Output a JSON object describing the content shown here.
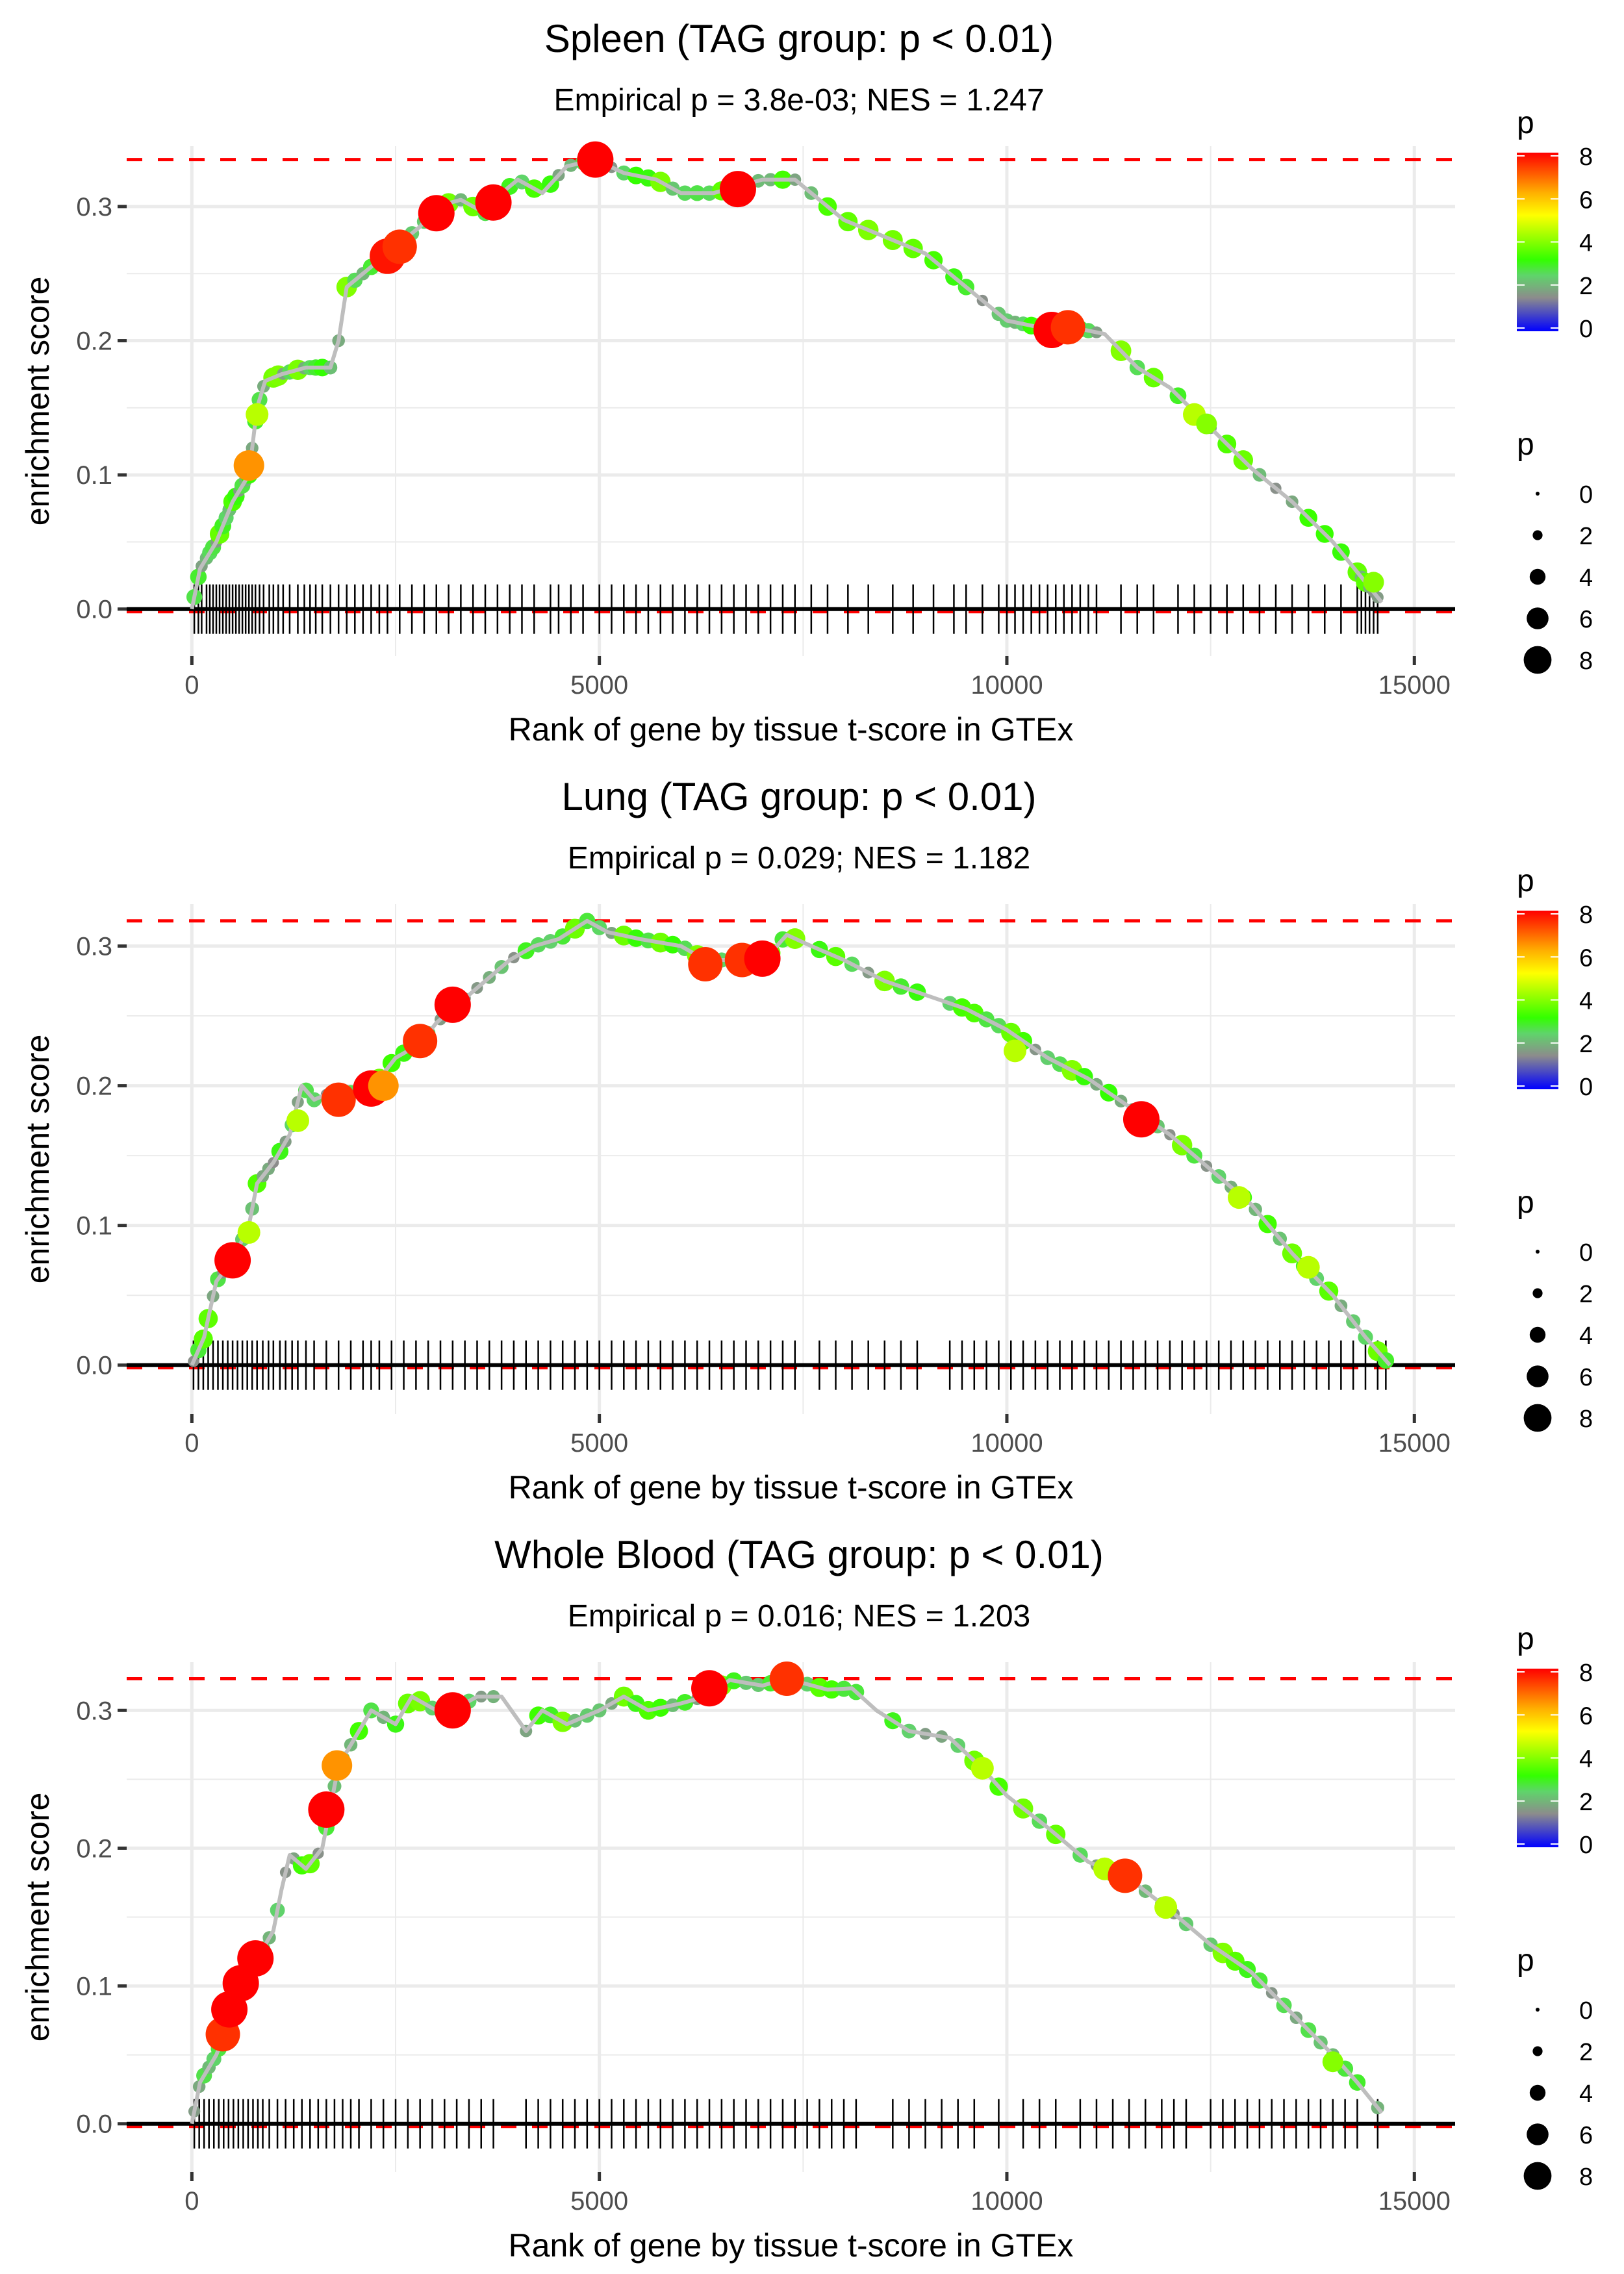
{
  "chart_data": [
    {
      "type": "line",
      "title": "Spleen (TAG group: p < 0.01)",
      "subtitle": "Empirical p = 3.8e-03; NES = 1.247",
      "xlabel": "Rank of gene by tissue t-score in GTEx",
      "ylabel": "enrichment score",
      "xlim": [
        -800,
        15500
      ],
      "ylim": [
        -0.035,
        0.345
      ],
      "x_ticks": [
        0,
        5000,
        10000,
        15000
      ],
      "x_tick_labels": [
        "0",
        "5000",
        "10000",
        "15000"
      ],
      "y_ticks": [
        0.0,
        0.1,
        0.2,
        0.3
      ],
      "y_tick_labels": [
        "0.0",
        "0.1",
        "0.2",
        "0.3"
      ],
      "max_es_line": 0.335,
      "grid": true,
      "curve": [
        [
          0,
          0.0
        ],
        [
          100,
          0.03
        ],
        [
          300,
          0.05
        ],
        [
          500,
          0.08
        ],
        [
          700,
          0.1
        ],
        [
          800,
          0.15
        ],
        [
          900,
          0.17
        ],
        [
          1100,
          0.175
        ],
        [
          1400,
          0.18
        ],
        [
          1700,
          0.18
        ],
        [
          1800,
          0.2
        ],
        [
          1900,
          0.24
        ],
        [
          2100,
          0.25
        ],
        [
          2300,
          0.26
        ],
        [
          2500,
          0.27
        ],
        [
          2800,
          0.285
        ],
        [
          3000,
          0.3
        ],
        [
          3300,
          0.305
        ],
        [
          3600,
          0.295
        ],
        [
          3800,
          0.31
        ],
        [
          4000,
          0.32
        ],
        [
          4300,
          0.31
        ],
        [
          4600,
          0.33
        ],
        [
          4950,
          0.335
        ],
        [
          5300,
          0.325
        ],
        [
          5700,
          0.32
        ],
        [
          6000,
          0.31
        ],
        [
          6400,
          0.31
        ],
        [
          6700,
          0.315
        ],
        [
          7000,
          0.32
        ],
        [
          7400,
          0.32
        ],
        [
          8000,
          0.29
        ],
        [
          8600,
          0.275
        ],
        [
          9000,
          0.265
        ],
        [
          9500,
          0.24
        ],
        [
          10000,
          0.215
        ],
        [
          10400,
          0.21
        ],
        [
          10800,
          0.21
        ],
        [
          11200,
          0.205
        ],
        [
          11600,
          0.18
        ],
        [
          12000,
          0.165
        ],
        [
          12500,
          0.135
        ],
        [
          13000,
          0.105
        ],
        [
          13500,
          0.08
        ],
        [
          14000,
          0.05
        ],
        [
          14400,
          0.02
        ],
        [
          14600,
          0.005
        ]
      ],
      "highlight_points": [
        {
          "rank": 700,
          "es": 0.107,
          "p": 6.5
        },
        {
          "rank": 800,
          "es": 0.145,
          "p": 4.5
        },
        {
          "rank": 2400,
          "es": 0.263,
          "p": 7.8
        },
        {
          "rank": 2550,
          "es": 0.27,
          "p": 7.5
        },
        {
          "rank": 3000,
          "es": 0.295,
          "p": 8
        },
        {
          "rank": 3700,
          "es": 0.303,
          "p": 8
        },
        {
          "rank": 4950,
          "es": 0.335,
          "p": 8
        },
        {
          "rank": 6700,
          "es": 0.313,
          "p": 8
        },
        {
          "rank": 10550,
          "es": 0.208,
          "p": 8
        },
        {
          "rank": 10750,
          "es": 0.21,
          "p": 7.5
        },
        {
          "rank": 12300,
          "es": 0.145,
          "p": 4.5
        },
        {
          "rank": 12450,
          "es": 0.138,
          "p": 4
        },
        {
          "rank": 14500,
          "es": 0.02,
          "p": 4
        }
      ],
      "rug_ranks": [
        30,
        80,
        120,
        180,
        220,
        260,
        300,
        340,
        380,
        420,
        460,
        500,
        540,
        580,
        620,
        660,
        700,
        740,
        780,
        830,
        880,
        950,
        1000,
        1060,
        1120,
        1200,
        1300,
        1380,
        1450,
        1520,
        1600,
        1700,
        1800,
        1900,
        2000,
        2100,
        2200,
        2300,
        2400,
        2550,
        2700,
        2850,
        3000,
        3150,
        3300,
        3450,
        3600,
        3750,
        3900,
        4050,
        4200,
        4400,
        4500,
        4650,
        4800,
        5000,
        5150,
        5300,
        5450,
        5600,
        5750,
        5900,
        6050,
        6200,
        6350,
        6500,
        6650,
        6800,
        6950,
        7100,
        7250,
        7400,
        7600,
        7800,
        8050,
        8300,
        8600,
        8850,
        9100,
        9350,
        9500,
        9700,
        9900,
        10000,
        10100,
        10200,
        10300,
        10400,
        10500,
        10600,
        10700,
        10800,
        10900,
        11000,
        11100,
        11400,
        11600,
        11800,
        12100,
        12300,
        12500,
        12700,
        12900,
        13100,
        13300,
        13500,
        13700,
        13900,
        14100,
        14300,
        14350,
        14400,
        14450,
        14500,
        14550
      ]
    },
    {
      "type": "line",
      "title": "Lung (TAG group: p < 0.01)",
      "subtitle": "Empirical p = 0.029; NES = 1.182",
      "xlabel": "Rank of gene by tissue t-score in GTEx",
      "ylabel": "enrichment score",
      "xlim": [
        -800,
        15500
      ],
      "ylim": [
        -0.035,
        0.33
      ],
      "x_ticks": [
        0,
        5000,
        10000,
        15000
      ],
      "x_tick_labels": [
        "0",
        "5000",
        "10000",
        "15000"
      ],
      "y_ticks": [
        0.0,
        0.1,
        0.2,
        0.3
      ],
      "y_tick_labels": [
        "0.0",
        "0.1",
        "0.2",
        "0.3"
      ],
      "max_es_line": 0.318,
      "grid": true,
      "curve": [
        [
          0,
          0.0
        ],
        [
          150,
          0.02
        ],
        [
          300,
          0.06
        ],
        [
          500,
          0.075
        ],
        [
          700,
          0.1
        ],
        [
          800,
          0.13
        ],
        [
          1000,
          0.145
        ],
        [
          1200,
          0.165
        ],
        [
          1350,
          0.2
        ],
        [
          1500,
          0.19
        ],
        [
          1700,
          0.195
        ],
        [
          2000,
          0.195
        ],
        [
          2300,
          0.205
        ],
        [
          2500,
          0.22
        ],
        [
          2800,
          0.23
        ],
        [
          3000,
          0.245
        ],
        [
          3300,
          0.26
        ],
        [
          3600,
          0.275
        ],
        [
          3900,
          0.29
        ],
        [
          4200,
          0.3
        ],
        [
          4500,
          0.305
        ],
        [
          4850,
          0.318
        ],
        [
          5100,
          0.31
        ],
        [
          5500,
          0.305
        ],
        [
          6000,
          0.3
        ],
        [
          6300,
          0.29
        ],
        [
          6800,
          0.29
        ],
        [
          7100,
          0.295
        ],
        [
          7300,
          0.308
        ],
        [
          7600,
          0.3
        ],
        [
          8000,
          0.29
        ],
        [
          8500,
          0.275
        ],
        [
          9000,
          0.265
        ],
        [
          9500,
          0.255
        ],
        [
          10000,
          0.24
        ],
        [
          10500,
          0.22
        ],
        [
          11000,
          0.205
        ],
        [
          11500,
          0.185
        ],
        [
          12000,
          0.165
        ],
        [
          12500,
          0.14
        ],
        [
          13000,
          0.115
        ],
        [
          13500,
          0.08
        ],
        [
          14000,
          0.05
        ],
        [
          14400,
          0.02
        ],
        [
          14700,
          0.0
        ]
      ],
      "highlight_points": [
        {
          "rank": 500,
          "es": 0.075,
          "p": 8
        },
        {
          "rank": 700,
          "es": 0.095,
          "p": 4.5
        },
        {
          "rank": 1300,
          "es": 0.175,
          "p": 4.5
        },
        {
          "rank": 1800,
          "es": 0.19,
          "p": 7.5
        },
        {
          "rank": 2200,
          "es": 0.198,
          "p": 8
        },
        {
          "rank": 2350,
          "es": 0.2,
          "p": 6.5
        },
        {
          "rank": 2800,
          "es": 0.232,
          "p": 7.5
        },
        {
          "rank": 3200,
          "es": 0.258,
          "p": 8
        },
        {
          "rank": 6300,
          "es": 0.287,
          "p": 7.5
        },
        {
          "rank": 6750,
          "es": 0.29,
          "p": 7.5
        },
        {
          "rank": 7000,
          "es": 0.291,
          "p": 8
        },
        {
          "rank": 10100,
          "es": 0.225,
          "p": 4.5
        },
        {
          "rank": 11650,
          "es": 0.176,
          "p": 8
        },
        {
          "rank": 12850,
          "es": 0.12,
          "p": 4.5
        },
        {
          "rank": 13700,
          "es": 0.07,
          "p": 4.5
        }
      ],
      "rug_ranks": [
        20,
        80,
        140,
        200,
        260,
        320,
        380,
        440,
        500,
        560,
        620,
        680,
        740,
        800,
        870,
        940,
        1000,
        1080,
        1150,
        1230,
        1300,
        1400,
        1500,
        1650,
        1800,
        1950,
        2100,
        2200,
        2300,
        2450,
        2600,
        2750,
        2900,
        3050,
        3200,
        3350,
        3500,
        3650,
        3800,
        3950,
        4100,
        4250,
        4400,
        4550,
        4700,
        4850,
        5000,
        5150,
        5300,
        5450,
        5600,
        5750,
        5900,
        6050,
        6200,
        6350,
        6500,
        6650,
        6800,
        6950,
        7100,
        7250,
        7400,
        7700,
        7900,
        8100,
        8300,
        8500,
        8700,
        8900,
        9300,
        9450,
        9600,
        9750,
        9900,
        10050,
        10200,
        10350,
        10500,
        10650,
        10800,
        10950,
        11100,
        11250,
        11400,
        11550,
        11700,
        11850,
        12000,
        12150,
        12300,
        12450,
        12600,
        12750,
        12900,
        13050,
        13200,
        13350,
        13500,
        13650,
        13800,
        13950,
        14100,
        14250,
        14400,
        14550,
        14650
      ]
    },
    {
      "type": "line",
      "title": "Whole Blood (TAG group: p < 0.01)",
      "subtitle": "Empirical p = 0.016; NES = 1.203",
      "xlabel": "Rank of gene by tissue t-score in GTEx",
      "ylabel": "enrichment score",
      "xlim": [
        -800,
        15500
      ],
      "ylim": [
        -0.035,
        0.335
      ],
      "x_ticks": [
        0,
        5000,
        10000,
        15000
      ],
      "x_tick_labels": [
        "0",
        "5000",
        "10000",
        "15000"
      ],
      "y_ticks": [
        0.0,
        0.1,
        0.2,
        0.3
      ],
      "y_tick_labels": [
        "0.0",
        "0.1",
        "0.2",
        "0.3"
      ],
      "max_es_line": 0.323,
      "grid": true,
      "curve": [
        [
          0,
          0.0
        ],
        [
          100,
          0.03
        ],
        [
          300,
          0.05
        ],
        [
          400,
          0.065
        ],
        [
          500,
          0.085
        ],
        [
          600,
          0.1
        ],
        [
          800,
          0.12
        ],
        [
          1000,
          0.14
        ],
        [
          1100,
          0.17
        ],
        [
          1200,
          0.195
        ],
        [
          1400,
          0.185
        ],
        [
          1600,
          0.2
        ],
        [
          1700,
          0.23
        ],
        [
          1800,
          0.26
        ],
        [
          2000,
          0.28
        ],
        [
          2200,
          0.3
        ],
        [
          2500,
          0.29
        ],
        [
          2700,
          0.31
        ],
        [
          3000,
          0.3
        ],
        [
          3200,
          0.3
        ],
        [
          3500,
          0.31
        ],
        [
          3800,
          0.31
        ],
        [
          4100,
          0.285
        ],
        [
          4300,
          0.3
        ],
        [
          4600,
          0.29
        ],
        [
          5000,
          0.3
        ],
        [
          5300,
          0.31
        ],
        [
          5600,
          0.3
        ],
        [
          6000,
          0.305
        ],
        [
          6300,
          0.31
        ],
        [
          6600,
          0.322
        ],
        [
          7000,
          0.318
        ],
        [
          7300,
          0.323
        ],
        [
          7800,
          0.315
        ],
        [
          8100,
          0.316
        ],
        [
          8400,
          0.3
        ],
        [
          8800,
          0.285
        ],
        [
          9300,
          0.28
        ],
        [
          9700,
          0.258
        ],
        [
          10000,
          0.238
        ],
        [
          10500,
          0.215
        ],
        [
          11000,
          0.19
        ],
        [
          11500,
          0.178
        ],
        [
          12000,
          0.155
        ],
        [
          12500,
          0.13
        ],
        [
          13000,
          0.11
        ],
        [
          13500,
          0.08
        ],
        [
          14000,
          0.05
        ],
        [
          14300,
          0.03
        ],
        [
          14600,
          0.008
        ]
      ],
      "highlight_points": [
        {
          "rank": 380,
          "es": 0.065,
          "p": 7.5
        },
        {
          "rank": 460,
          "es": 0.083,
          "p": 8
        },
        {
          "rank": 600,
          "es": 0.102,
          "p": 8
        },
        {
          "rank": 780,
          "es": 0.12,
          "p": 8
        },
        {
          "rank": 1650,
          "es": 0.228,
          "p": 8
        },
        {
          "rank": 1780,
          "es": 0.26,
          "p": 6.5
        },
        {
          "rank": 3200,
          "es": 0.3,
          "p": 8
        },
        {
          "rank": 6350,
          "es": 0.316,
          "p": 8
        },
        {
          "rank": 7300,
          "es": 0.323,
          "p": 7.5
        },
        {
          "rank": 9700,
          "es": 0.258,
          "p": 4.5
        },
        {
          "rank": 11200,
          "es": 0.185,
          "p": 4.5
        },
        {
          "rank": 11450,
          "es": 0.18,
          "p": 7.5
        },
        {
          "rank": 11950,
          "es": 0.157,
          "p": 4.5
        },
        {
          "rank": 14000,
          "es": 0.045,
          "p": 4
        }
      ],
      "rug_ranks": [
        30,
        90,
        150,
        210,
        270,
        330,
        390,
        450,
        510,
        570,
        630,
        690,
        750,
        810,
        870,
        950,
        1050,
        1150,
        1250,
        1350,
        1450,
        1550,
        1650,
        1750,
        1850,
        1950,
        2050,
        2200,
        2350,
        2500,
        2650,
        2800,
        2950,
        3100,
        3250,
        3400,
        3550,
        3700,
        4100,
        4250,
        4400,
        4550,
        4700,
        4850,
        5000,
        5150,
        5300,
        5450,
        5600,
        5750,
        5900,
        6050,
        6200,
        6350,
        6500,
        6650,
        6800,
        6950,
        7100,
        7250,
        7400,
        7550,
        7700,
        7850,
        8000,
        8150,
        8600,
        8800,
        9000,
        9200,
        9400,
        9600,
        9900,
        10200,
        10400,
        10600,
        10900,
        11100,
        11300,
        11500,
        11700,
        11900,
        12050,
        12200,
        12500,
        12650,
        12800,
        12950,
        13100,
        13250,
        13400,
        13550,
        13700,
        13850,
        14000,
        14150,
        14300,
        14550
      ]
    }
  ],
  "legend": {
    "color": {
      "title": "p",
      "labels": [
        "8",
        "6",
        "4",
        "2",
        "0"
      ],
      "range": [
        0,
        8
      ],
      "stops": [
        {
          "value": 0,
          "color": "#0000ff"
        },
        {
          "value": 1.5,
          "color": "#8c8c8c"
        },
        {
          "value": 2.5,
          "color": "#5fd46a"
        },
        {
          "value": 3.2,
          "color": "#33ff00"
        },
        {
          "value": 5.2,
          "color": "#ffff00"
        },
        {
          "value": 6.2,
          "color": "#ffb000"
        },
        {
          "value": 8,
          "color": "#ff0000"
        }
      ]
    },
    "size": {
      "title": "p",
      "labels": [
        "0",
        "2",
        "4",
        "6",
        "8"
      ],
      "values": [
        0,
        2,
        4,
        6,
        8
      ]
    }
  },
  "colors": {
    "max_line": "#ff0000",
    "zero_line": "#000000",
    "running_line": "#bebebe",
    "grid": "#ebebeb",
    "rug": "#000000"
  }
}
